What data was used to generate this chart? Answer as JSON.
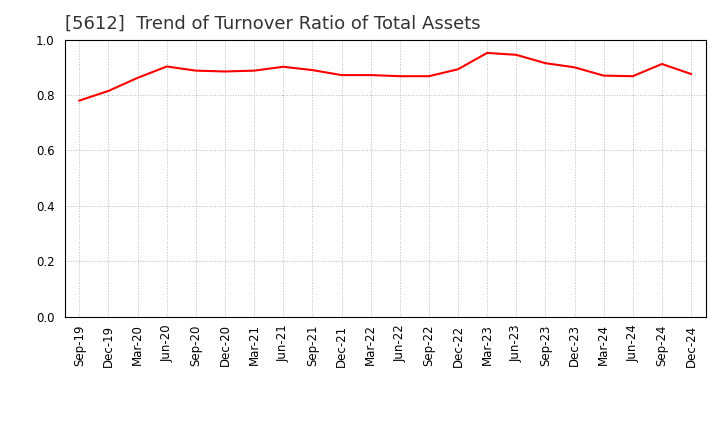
{
  "title": "[5612]  Trend of Turnover Ratio of Total Assets",
  "x_labels": [
    "Sep-19",
    "Dec-19",
    "Mar-20",
    "Jun-20",
    "Sep-20",
    "Dec-20",
    "Mar-21",
    "Jun-21",
    "Sep-21",
    "Dec-21",
    "Mar-22",
    "Jun-22",
    "Sep-22",
    "Dec-22",
    "Mar-23",
    "Jun-23",
    "Sep-23",
    "Dec-23",
    "Mar-24",
    "Jun-24",
    "Sep-24",
    "Dec-24"
  ],
  "y_values": [
    0.78,
    0.815,
    0.862,
    0.903,
    0.888,
    0.885,
    0.888,
    0.902,
    0.89,
    0.872,
    0.872,
    0.868,
    0.868,
    0.893,
    0.952,
    0.945,
    0.915,
    0.9,
    0.87,
    0.868,
    0.912,
    0.876
  ],
  "line_color": "#FF0000",
  "line_width": 1.5,
  "ylim": [
    0.0,
    1.0
  ],
  "yticks": [
    0.0,
    0.2,
    0.4,
    0.6,
    0.8,
    1.0
  ],
  "background_color": "#FFFFFF",
  "grid_color": "#BBBBBB",
  "title_fontsize": 13,
  "tick_fontsize": 8.5
}
